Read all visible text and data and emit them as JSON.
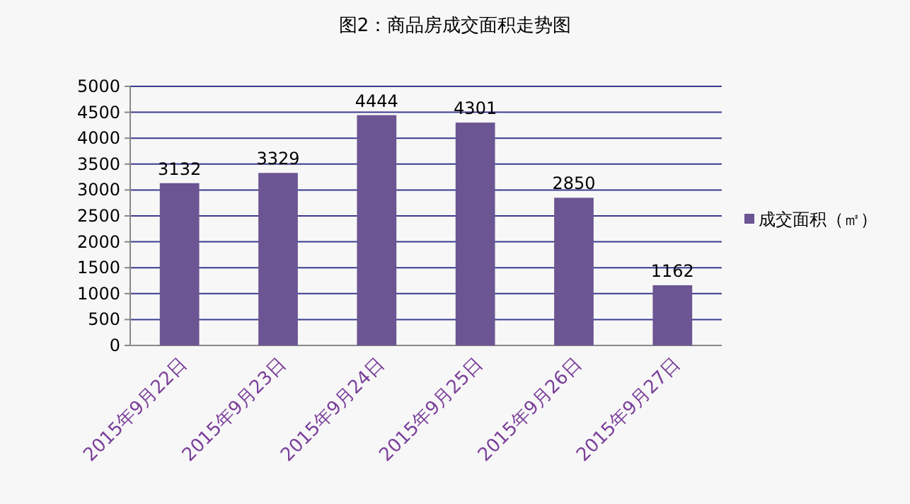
{
  "chart_data": {
    "type": "bar",
    "title": "图2：商品房成交面积走势图",
    "categories": [
      "2015年9月22日",
      "2015年9月23日",
      "2015年9月24日",
      "2015年9月25日",
      "2015年9月26日",
      "2015年9月27日"
    ],
    "series": [
      {
        "name": "成交面积（㎡）",
        "color": "#6b5592",
        "values": [
          3132,
          3329,
          4444,
          4301,
          2850,
          1162
        ]
      }
    ],
    "ylim": [
      0,
      5000
    ],
    "yticks": [
      0,
      500,
      1000,
      1500,
      2000,
      2500,
      3000,
      3500,
      4000,
      4500,
      5000
    ],
    "grid": "y",
    "legend": "right",
    "data_labels": true
  }
}
